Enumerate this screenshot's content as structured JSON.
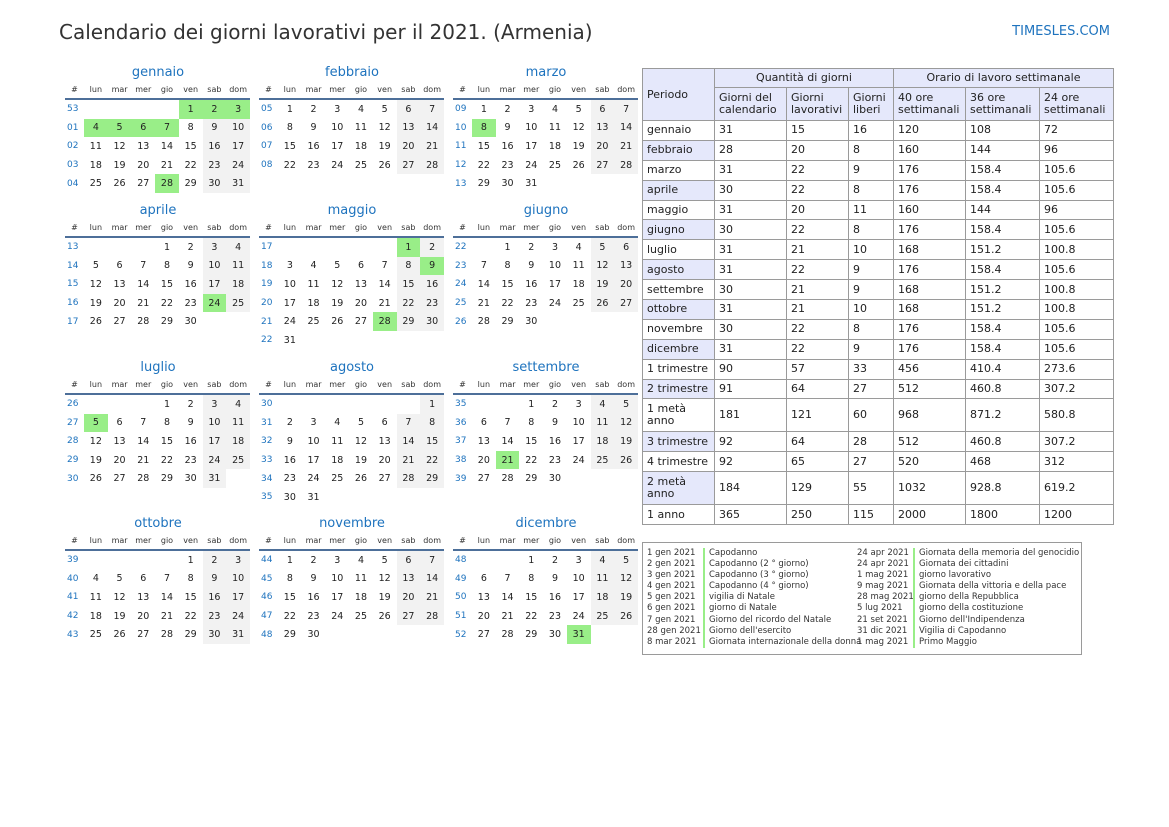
{
  "title": "Calendario dei giorni lavorativi per il 2021. (Armenia)",
  "site": "TIMESLES.COM",
  "weekday_headers": [
    "#",
    "lun",
    "mar",
    "mer",
    "gio",
    "ven",
    "sab",
    "dom"
  ],
  "months": [
    {
      "name": "gennaio",
      "rows": [
        [
          "53",
          "",
          "",
          "",
          "",
          "1",
          "2",
          "3"
        ],
        [
          "01",
          "4",
          "5",
          "6",
          "7",
          "8",
          "9",
          "10"
        ],
        [
          "02",
          "11",
          "12",
          "13",
          "14",
          "15",
          "16",
          "17"
        ],
        [
          "03",
          "18",
          "19",
          "20",
          "21",
          "22",
          "23",
          "24"
        ],
        [
          "04",
          "25",
          "26",
          "27",
          "28",
          "29",
          "30",
          "31"
        ]
      ],
      "holidays": [
        "1",
        "2",
        "3",
        "4",
        "5",
        "6",
        "7",
        "28"
      ]
    },
    {
      "name": "febbraio",
      "rows": [
        [
          "05",
          "1",
          "2",
          "3",
          "4",
          "5",
          "6",
          "7"
        ],
        [
          "06",
          "8",
          "9",
          "10",
          "11",
          "12",
          "13",
          "14"
        ],
        [
          "07",
          "15",
          "16",
          "17",
          "18",
          "19",
          "20",
          "21"
        ],
        [
          "08",
          "22",
          "23",
          "24",
          "25",
          "26",
          "27",
          "28"
        ]
      ],
      "holidays": []
    },
    {
      "name": "marzo",
      "rows": [
        [
          "09",
          "1",
          "2",
          "3",
          "4",
          "5",
          "6",
          "7"
        ],
        [
          "10",
          "8",
          "9",
          "10",
          "11",
          "12",
          "13",
          "14"
        ],
        [
          "11",
          "15",
          "16",
          "17",
          "18",
          "19",
          "20",
          "21"
        ],
        [
          "12",
          "22",
          "23",
          "24",
          "25",
          "26",
          "27",
          "28"
        ],
        [
          "13",
          "29",
          "30",
          "31",
          "",
          "",
          "",
          ""
        ]
      ],
      "holidays": [
        "8"
      ]
    },
    {
      "name": "aprile",
      "rows": [
        [
          "13",
          "",
          "",
          "",
          "1",
          "2",
          "3",
          "4"
        ],
        [
          "14",
          "5",
          "6",
          "7",
          "8",
          "9",
          "10",
          "11"
        ],
        [
          "15",
          "12",
          "13",
          "14",
          "15",
          "16",
          "17",
          "18"
        ],
        [
          "16",
          "19",
          "20",
          "21",
          "22",
          "23",
          "24",
          "25"
        ],
        [
          "17",
          "26",
          "27",
          "28",
          "29",
          "30",
          "",
          ""
        ]
      ],
      "holidays": [
        "24"
      ]
    },
    {
      "name": "maggio",
      "rows": [
        [
          "17",
          "",
          "",
          "",
          "",
          "",
          "1",
          "2"
        ],
        [
          "18",
          "3",
          "4",
          "5",
          "6",
          "7",
          "8",
          "9"
        ],
        [
          "19",
          "10",
          "11",
          "12",
          "13",
          "14",
          "15",
          "16"
        ],
        [
          "20",
          "17",
          "18",
          "19",
          "20",
          "21",
          "22",
          "23"
        ],
        [
          "21",
          "24",
          "25",
          "26",
          "27",
          "28",
          "29",
          "30"
        ],
        [
          "22",
          "31",
          "",
          "",
          "",
          "",
          "",
          ""
        ]
      ],
      "holidays": [
        "1",
        "9",
        "28"
      ]
    },
    {
      "name": "giugno",
      "rows": [
        [
          "22",
          "",
          "1",
          "2",
          "3",
          "4",
          "5",
          "6"
        ],
        [
          "23",
          "7",
          "8",
          "9",
          "10",
          "11",
          "12",
          "13"
        ],
        [
          "24",
          "14",
          "15",
          "16",
          "17",
          "18",
          "19",
          "20"
        ],
        [
          "25",
          "21",
          "22",
          "23",
          "24",
          "25",
          "26",
          "27"
        ],
        [
          "26",
          "28",
          "29",
          "30",
          "",
          "",
          "",
          ""
        ]
      ],
      "holidays": []
    },
    {
      "name": "luglio",
      "rows": [
        [
          "26",
          "",
          "",
          "",
          "1",
          "2",
          "3",
          "4"
        ],
        [
          "27",
          "5",
          "6",
          "7",
          "8",
          "9",
          "10",
          "11"
        ],
        [
          "28",
          "12",
          "13",
          "14",
          "15",
          "16",
          "17",
          "18"
        ],
        [
          "29",
          "19",
          "20",
          "21",
          "22",
          "23",
          "24",
          "25"
        ],
        [
          "30",
          "26",
          "27",
          "28",
          "29",
          "30",
          "31",
          ""
        ]
      ],
      "holidays": [
        "5"
      ]
    },
    {
      "name": "agosto",
      "rows": [
        [
          "30",
          "",
          "",
          "",
          "",
          "",
          "",
          "1"
        ],
        [
          "31",
          "2",
          "3",
          "4",
          "5",
          "6",
          "7",
          "8"
        ],
        [
          "32",
          "9",
          "10",
          "11",
          "12",
          "13",
          "14",
          "15"
        ],
        [
          "33",
          "16",
          "17",
          "18",
          "19",
          "20",
          "21",
          "22"
        ],
        [
          "34",
          "23",
          "24",
          "25",
          "26",
          "27",
          "28",
          "29"
        ],
        [
          "35",
          "30",
          "31",
          "",
          "",
          "",
          "",
          ""
        ]
      ],
      "holidays": []
    },
    {
      "name": "settembre",
      "rows": [
        [
          "35",
          "",
          "",
          "1",
          "2",
          "3",
          "4",
          "5"
        ],
        [
          "36",
          "6",
          "7",
          "8",
          "9",
          "10",
          "11",
          "12"
        ],
        [
          "37",
          "13",
          "14",
          "15",
          "16",
          "17",
          "18",
          "19"
        ],
        [
          "38",
          "20",
          "21",
          "22",
          "23",
          "24",
          "25",
          "26"
        ],
        [
          "39",
          "27",
          "28",
          "29",
          "30",
          "",
          "",
          ""
        ]
      ],
      "holidays": [
        "21"
      ]
    },
    {
      "name": "ottobre",
      "rows": [
        [
          "39",
          "",
          "",
          "",
          "",
          "1",
          "2",
          "3"
        ],
        [
          "40",
          "4",
          "5",
          "6",
          "7",
          "8",
          "9",
          "10"
        ],
        [
          "41",
          "11",
          "12",
          "13",
          "14",
          "15",
          "16",
          "17"
        ],
        [
          "42",
          "18",
          "19",
          "20",
          "21",
          "22",
          "23",
          "24"
        ],
        [
          "43",
          "25",
          "26",
          "27",
          "28",
          "29",
          "30",
          "31"
        ]
      ],
      "holidays": []
    },
    {
      "name": "novembre",
      "rows": [
        [
          "44",
          "1",
          "2",
          "3",
          "4",
          "5",
          "6",
          "7"
        ],
        [
          "45",
          "8",
          "9",
          "10",
          "11",
          "12",
          "13",
          "14"
        ],
        [
          "46",
          "15",
          "16",
          "17",
          "18",
          "19",
          "20",
          "21"
        ],
        [
          "47",
          "22",
          "23",
          "24",
          "25",
          "26",
          "27",
          "28"
        ],
        [
          "48",
          "29",
          "30",
          "",
          "",
          "",
          "",
          ""
        ]
      ],
      "holidays": []
    },
    {
      "name": "dicembre",
      "rows": [
        [
          "48",
          "",
          "",
          "1",
          "2",
          "3",
          "4",
          "5"
        ],
        [
          "49",
          "6",
          "7",
          "8",
          "9",
          "10",
          "11",
          "12"
        ],
        [
          "50",
          "13",
          "14",
          "15",
          "16",
          "17",
          "18",
          "19"
        ],
        [
          "51",
          "20",
          "21",
          "22",
          "23",
          "24",
          "25",
          "26"
        ],
        [
          "52",
          "27",
          "28",
          "29",
          "30",
          "31",
          "",
          ""
        ]
      ],
      "holidays": [
        "31"
      ]
    }
  ],
  "stats": {
    "header": {
      "period": "Periodo",
      "group_days": "Quantità di giorni",
      "group_hours": "Orario di lavoro settimanale",
      "cols": [
        "Giorni del calendario",
        "Giorni lavorativi",
        "Giorni liberi",
        "40 ore settimanali",
        "36 ore settimanali",
        "24 ore settimanali"
      ]
    },
    "rows": [
      [
        "gennaio",
        "31",
        "15",
        "16",
        "120",
        "108",
        "72"
      ],
      [
        "febbraio",
        "28",
        "20",
        "8",
        "160",
        "144",
        "96"
      ],
      [
        "marzo",
        "31",
        "22",
        "9",
        "176",
        "158.4",
        "105.6"
      ],
      [
        "aprile",
        "30",
        "22",
        "8",
        "176",
        "158.4",
        "105.6"
      ],
      [
        "maggio",
        "31",
        "20",
        "11",
        "160",
        "144",
        "96"
      ],
      [
        "giugno",
        "30",
        "22",
        "8",
        "176",
        "158.4",
        "105.6"
      ],
      [
        "luglio",
        "31",
        "21",
        "10",
        "168",
        "151.2",
        "100.8"
      ],
      [
        "agosto",
        "31",
        "22",
        "9",
        "176",
        "158.4",
        "105.6"
      ],
      [
        "settembre",
        "30",
        "21",
        "9",
        "168",
        "151.2",
        "100.8"
      ],
      [
        "ottobre",
        "31",
        "21",
        "10",
        "168",
        "151.2",
        "100.8"
      ],
      [
        "novembre",
        "30",
        "22",
        "8",
        "176",
        "158.4",
        "105.6"
      ],
      [
        "dicembre",
        "31",
        "22",
        "9",
        "176",
        "158.4",
        "105.6"
      ],
      [
        "1 trimestre",
        "90",
        "57",
        "33",
        "456",
        "410.4",
        "273.6"
      ],
      [
        "2 trimestre",
        "91",
        "64",
        "27",
        "512",
        "460.8",
        "307.2"
      ],
      [
        "1 metà anno",
        "181",
        "121",
        "60",
        "968",
        "871.2",
        "580.8"
      ],
      [
        "3 trimestre",
        "92",
        "64",
        "28",
        "512",
        "460.8",
        "307.2"
      ],
      [
        "4 trimestre",
        "92",
        "65",
        "27",
        "520",
        "468",
        "312"
      ],
      [
        "2 metà anno",
        "184",
        "129",
        "55",
        "1032",
        "928.8",
        "619.2"
      ],
      [
        "1 anno",
        "365",
        "250",
        "115",
        "2000",
        "1800",
        "1200"
      ]
    ]
  },
  "holiday_list": [
    [
      {
        "date": "1 gen 2021",
        "name": "Capodanno"
      },
      {
        "date": "2 gen 2021",
        "name": "Capodanno (2 ° giorno)"
      },
      {
        "date": "3 gen 2021",
        "name": "Capodanno (3 ° giorno)"
      },
      {
        "date": "4 gen 2021",
        "name": "Capodanno (4 ° giorno)"
      },
      {
        "date": "5 gen 2021",
        "name": "vigilia di Natale"
      },
      {
        "date": "6 gen 2021",
        "name": "giorno di Natale"
      },
      {
        "date": "7 gen 2021",
        "name": "Giorno del ricordo del Natale"
      },
      {
        "date": "28 gen 2021",
        "name": "Giorno dell'esercito"
      },
      {
        "date": "8 mar 2021",
        "name": "Giornata internazionale della donna"
      }
    ],
    [
      {
        "date": "24 apr 2021",
        "name": "Giornata della memoria del genocidio"
      },
      {
        "date": "24 apr 2021",
        "name": "Giornata dei cittadini"
      },
      {
        "date": "1 mag 2021",
        "name": "giorno lavorativo"
      },
      {
        "date": "9 mag 2021",
        "name": "Giornata della vittoria e della pace"
      },
      {
        "date": "28 mag 2021",
        "name": "giorno della Repubblica"
      },
      {
        "date": "5 lug 2021",
        "name": "giorno della costituzione"
      },
      {
        "date": "21 set 2021",
        "name": "Giorno dell'Indipendenza"
      },
      {
        "date": "31 dic 2021",
        "name": "Vigilia di Capodanno"
      },
      {
        "date": "1 mag 2021",
        "name": "Primo Maggio"
      }
    ]
  ],
  "colors": {
    "accent": "#1e73be",
    "holiday": "#99ee88",
    "weekend": "#f2f2f2",
    "header_fill": "#e5e8fb"
  }
}
